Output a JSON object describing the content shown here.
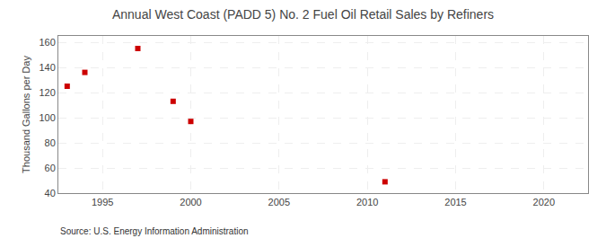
{
  "chart_data": {
    "type": "scatter",
    "title": "Annual West Coast (PADD 5) No. 2 Fuel Oil Retail Sales by Refiners",
    "ylabel": "Thousand Gallons per Day",
    "annotations": [
      "Source: U.S. Energy Information Administration"
    ],
    "x": [
      1993,
      1994,
      1997,
      1999,
      2000,
      2011
    ],
    "values": [
      125,
      136,
      155,
      113,
      97,
      49
    ],
    "color": "#cc0000",
    "marker": "square",
    "xlim": [
      1992.5,
      2022.5
    ],
    "ylim": [
      40,
      165
    ],
    "xticks": [
      1995,
      2000,
      2005,
      2010,
      2015,
      2020
    ],
    "yticks": [
      40,
      60,
      80,
      100,
      120,
      140,
      160
    ],
    "grid": true
  }
}
